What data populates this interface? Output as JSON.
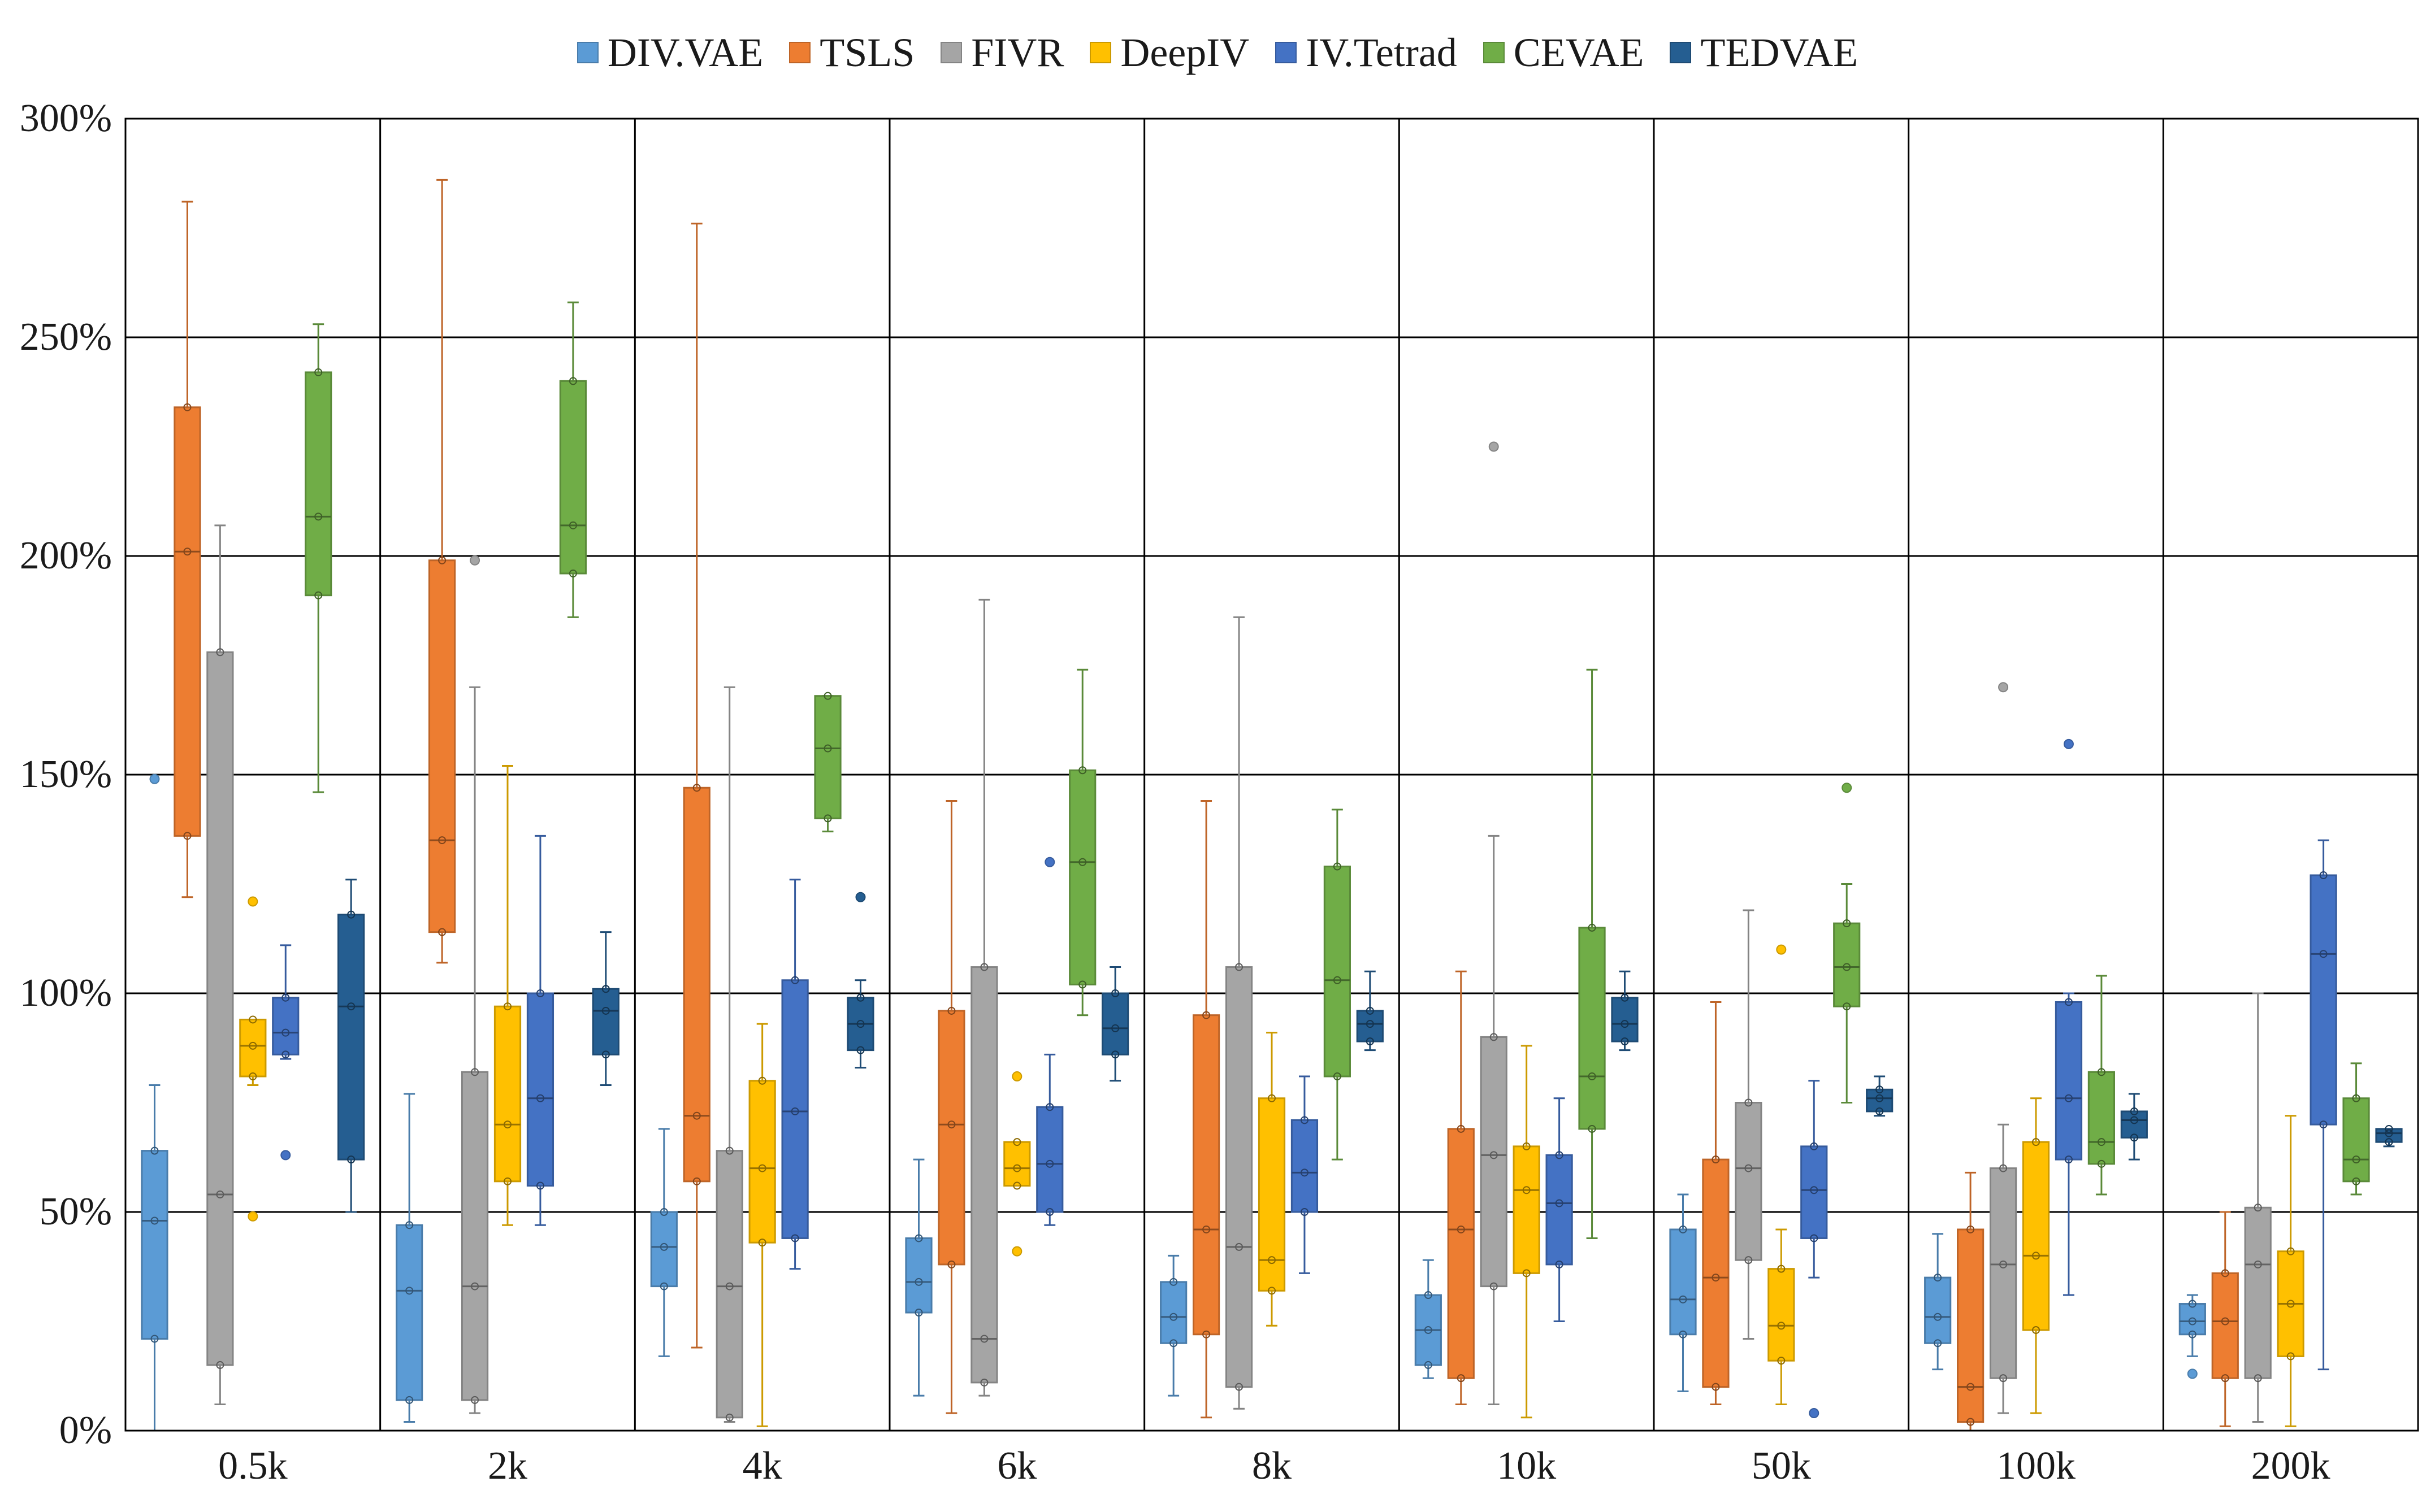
{
  "chart_data": {
    "type": "box",
    "title": "",
    "xlabel": "",
    "ylabel": "",
    "ylim": [
      0,
      3.0
    ],
    "yticks": [
      "0%",
      "50%",
      "100%",
      "150%",
      "200%",
      "250%",
      "300%"
    ],
    "legend_position": "top-center",
    "categories": [
      "0.5k",
      "2k",
      "4k",
      "6k",
      "8k",
      "10k",
      "50k",
      "100k",
      "200k"
    ],
    "series": [
      {
        "name": "DIV.VAE",
        "color": "#5b9bd5",
        "boxes": [
          {
            "min": 0.0,
            "q1": 0.21,
            "median": 0.48,
            "q3": 0.64,
            "max": 0.79,
            "outliers": [
              1.49
            ]
          },
          {
            "min": 0.02,
            "q1": 0.07,
            "median": 0.32,
            "q3": 0.47,
            "max": 0.77,
            "outliers": []
          },
          {
            "min": 0.17,
            "q1": 0.33,
            "median": 0.42,
            "q3": 0.5,
            "max": 0.69,
            "outliers": []
          },
          {
            "min": 0.08,
            "q1": 0.27,
            "median": 0.34,
            "q3": 0.44,
            "max": 0.62,
            "outliers": []
          },
          {
            "min": 0.08,
            "q1": 0.2,
            "median": 0.26,
            "q3": 0.34,
            "max": 0.4,
            "outliers": []
          },
          {
            "min": 0.12,
            "q1": 0.15,
            "median": 0.23,
            "q3": 0.31,
            "max": 0.39,
            "outliers": []
          },
          {
            "min": 0.09,
            "q1": 0.22,
            "median": 0.3,
            "q3": 0.46,
            "max": 0.54,
            "outliers": []
          },
          {
            "min": 0.14,
            "q1": 0.2,
            "median": 0.26,
            "q3": 0.35,
            "max": 0.45,
            "outliers": []
          },
          {
            "min": 0.17,
            "q1": 0.22,
            "median": 0.25,
            "q3": 0.29,
            "max": 0.31,
            "outliers": [
              0.13
            ]
          }
        ]
      },
      {
        "name": "TSLS",
        "color": "#ed7d31",
        "boxes": [
          {
            "min": 1.22,
            "q1": 1.36,
            "median": 2.01,
            "q3": 2.34,
            "max": 2.81,
            "outliers": []
          },
          {
            "min": 1.07,
            "q1": 1.14,
            "median": 1.35,
            "q3": 1.99,
            "max": 2.86,
            "outliers": []
          },
          {
            "min": 0.19,
            "q1": 0.57,
            "median": 0.72,
            "q3": 1.47,
            "max": 2.76,
            "outliers": []
          },
          {
            "min": 0.04,
            "q1": 0.38,
            "median": 0.7,
            "q3": 0.96,
            "max": 1.44,
            "outliers": []
          },
          {
            "min": 0.03,
            "q1": 0.22,
            "median": 0.46,
            "q3": 0.95,
            "max": 1.44,
            "outliers": []
          },
          {
            "min": 0.06,
            "q1": 0.12,
            "median": 0.46,
            "q3": 0.69,
            "max": 1.05,
            "outliers": []
          },
          {
            "min": 0.06,
            "q1": 0.1,
            "median": 0.35,
            "q3": 0.62,
            "max": 0.98,
            "outliers": []
          },
          {
            "min": 0.0,
            "q1": 0.02,
            "median": 0.1,
            "q3": 0.46,
            "max": 0.59,
            "outliers": []
          },
          {
            "min": 0.01,
            "q1": 0.12,
            "median": 0.25,
            "q3": 0.36,
            "max": 0.5,
            "outliers": []
          }
        ]
      },
      {
        "name": "FIVR",
        "color": "#a5a5a5",
        "boxes": [
          {
            "min": 0.06,
            "q1": 0.15,
            "median": 0.54,
            "q3": 1.78,
            "max": 2.07,
            "outliers": []
          },
          {
            "min": 0.04,
            "q1": 0.07,
            "median": 0.33,
            "q3": 0.82,
            "max": 1.7,
            "outliers": [
              1.99
            ]
          },
          {
            "min": 0.02,
            "q1": 0.03,
            "median": 0.33,
            "q3": 0.64,
            "max": 1.7,
            "outliers": []
          },
          {
            "min": 0.08,
            "q1": 0.11,
            "median": 0.21,
            "q3": 1.06,
            "max": 1.9,
            "outliers": []
          },
          {
            "min": 0.05,
            "q1": 0.1,
            "median": 0.42,
            "q3": 1.06,
            "max": 1.86,
            "outliers": []
          },
          {
            "min": 0.06,
            "q1": 0.33,
            "median": 0.63,
            "q3": 0.9,
            "max": 1.36,
            "outliers": [
              2.25
            ]
          },
          {
            "min": 0.21,
            "q1": 0.39,
            "median": 0.6,
            "q3": 0.75,
            "max": 1.19,
            "outliers": []
          },
          {
            "min": 0.04,
            "q1": 0.12,
            "median": 0.38,
            "q3": 0.6,
            "max": 0.7,
            "outliers": [
              1.7
            ]
          },
          {
            "min": 0.02,
            "q1": 0.12,
            "median": 0.38,
            "q3": 0.51,
            "max": 1.0,
            "outliers": []
          }
        ]
      },
      {
        "name": "DeepIV",
        "color": "#ffc000",
        "boxes": [
          {
            "min": 0.79,
            "q1": 0.81,
            "median": 0.88,
            "q3": 0.94,
            "max": 0.94,
            "outliers": [
              0.49,
              1.21
            ]
          },
          {
            "min": 0.47,
            "q1": 0.57,
            "median": 0.7,
            "q3": 0.97,
            "max": 1.52,
            "outliers": []
          },
          {
            "min": 0.01,
            "q1": 0.43,
            "median": 0.6,
            "q3": 0.8,
            "max": 0.93,
            "outliers": []
          },
          {
            "min": 0.56,
            "q1": 0.56,
            "median": 0.6,
            "q3": 0.66,
            "max": 0.66,
            "outliers": [
              0.41,
              0.81
            ]
          },
          {
            "min": 0.24,
            "q1": 0.32,
            "median": 0.39,
            "q3": 0.76,
            "max": 0.91,
            "outliers": []
          },
          {
            "min": 0.03,
            "q1": 0.36,
            "median": 0.55,
            "q3": 0.65,
            "max": 0.88,
            "outliers": []
          },
          {
            "min": 0.06,
            "q1": 0.16,
            "median": 0.24,
            "q3": 0.37,
            "max": 0.46,
            "outliers": [
              1.1
            ]
          },
          {
            "min": 0.04,
            "q1": 0.23,
            "median": 0.4,
            "q3": 0.66,
            "max": 0.76,
            "outliers": []
          },
          {
            "min": 0.01,
            "q1": 0.17,
            "median": 0.29,
            "q3": 0.41,
            "max": 0.72,
            "outliers": []
          }
        ]
      },
      {
        "name": "IV.Tetrad",
        "color": "#4472c4",
        "boxes": [
          {
            "min": 0.85,
            "q1": 0.86,
            "median": 0.91,
            "q3": 0.99,
            "max": 1.11,
            "outliers": [
              0.63
            ]
          },
          {
            "min": 0.47,
            "q1": 0.56,
            "median": 0.76,
            "q3": 1.0,
            "max": 1.36,
            "outliers": []
          },
          {
            "min": 0.37,
            "q1": 0.44,
            "median": 0.73,
            "q3": 1.03,
            "max": 1.26,
            "outliers": []
          },
          {
            "min": 0.47,
            "q1": 0.5,
            "median": 0.61,
            "q3": 0.74,
            "max": 0.86,
            "outliers": [
              1.3
            ]
          },
          {
            "min": 0.36,
            "q1": 0.5,
            "median": 0.59,
            "q3": 0.71,
            "max": 0.81,
            "outliers": []
          },
          {
            "min": 0.25,
            "q1": 0.38,
            "median": 0.52,
            "q3": 0.63,
            "max": 0.76,
            "outliers": []
          },
          {
            "min": 0.35,
            "q1": 0.44,
            "median": 0.55,
            "q3": 0.65,
            "max": 0.8,
            "outliers": [
              0.04
            ]
          },
          {
            "min": 0.31,
            "q1": 0.62,
            "median": 0.76,
            "q3": 0.98,
            "max": 1.0,
            "outliers": [
              1.57
            ]
          },
          {
            "min": 0.14,
            "q1": 0.7,
            "median": 1.09,
            "q3": 1.27,
            "max": 1.35,
            "outliers": []
          }
        ]
      },
      {
        "name": "CEVAE",
        "color": "#70ad47",
        "boxes": [
          {
            "min": 1.46,
            "q1": 1.91,
            "median": 2.09,
            "q3": 2.42,
            "max": 2.53,
            "outliers": []
          },
          {
            "min": 1.86,
            "q1": 1.96,
            "median": 2.07,
            "q3": 2.4,
            "max": 2.58,
            "outliers": []
          },
          {
            "min": 1.37,
            "q1": 1.4,
            "median": 1.56,
            "q3": 1.68,
            "max": 1.68,
            "outliers": []
          },
          {
            "min": 0.95,
            "q1": 1.02,
            "median": 1.3,
            "q3": 1.51,
            "max": 1.74,
            "outliers": []
          },
          {
            "min": 0.62,
            "q1": 0.81,
            "median": 1.03,
            "q3": 1.29,
            "max": 1.42,
            "outliers": []
          },
          {
            "min": 0.44,
            "q1": 0.69,
            "median": 0.81,
            "q3": 1.15,
            "max": 1.74,
            "outliers": []
          },
          {
            "min": 0.75,
            "q1": 0.97,
            "median": 1.06,
            "q3": 1.16,
            "max": 1.25,
            "outliers": [
              1.47
            ]
          },
          {
            "min": 0.54,
            "q1": 0.61,
            "median": 0.66,
            "q3": 0.82,
            "max": 1.04,
            "outliers": []
          },
          {
            "min": 0.54,
            "q1": 0.57,
            "median": 0.62,
            "q3": 0.76,
            "max": 0.84,
            "outliers": []
          }
        ]
      },
      {
        "name": "TEDVAE",
        "color": "#255e91",
        "boxes": [
          {
            "min": 0.5,
            "q1": 0.62,
            "median": 0.97,
            "q3": 1.18,
            "max": 1.26,
            "outliers": []
          },
          {
            "min": 0.79,
            "q1": 0.86,
            "median": 0.96,
            "q3": 1.01,
            "max": 1.14,
            "outliers": []
          },
          {
            "min": 0.83,
            "q1": 0.87,
            "median": 0.93,
            "q3": 0.99,
            "max": 1.03,
            "outliers": [
              1.22
            ]
          },
          {
            "min": 0.8,
            "q1": 0.86,
            "median": 0.92,
            "q3": 1.0,
            "max": 1.06,
            "outliers": []
          },
          {
            "min": 0.87,
            "q1": 0.89,
            "median": 0.93,
            "q3": 0.96,
            "max": 1.05,
            "outliers": []
          },
          {
            "min": 0.87,
            "q1": 0.89,
            "median": 0.93,
            "q3": 0.99,
            "max": 1.05,
            "outliers": []
          },
          {
            "min": 0.72,
            "q1": 0.73,
            "median": 0.76,
            "q3": 0.78,
            "max": 0.81,
            "outliers": []
          },
          {
            "min": 0.62,
            "q1": 0.67,
            "median": 0.71,
            "q3": 0.73,
            "max": 0.77,
            "outliers": []
          },
          {
            "min": 0.65,
            "q1": 0.66,
            "median": 0.68,
            "q3": 0.69,
            "max": 0.69,
            "outliers": []
          }
        ]
      }
    ]
  }
}
